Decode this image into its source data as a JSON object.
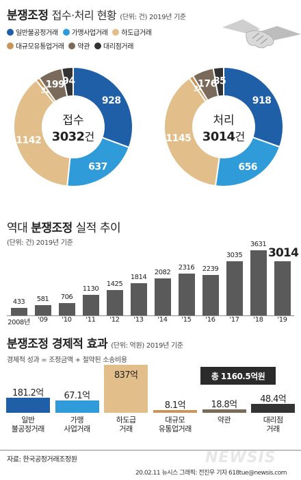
{
  "header": {
    "title_main": "분쟁조정",
    "title_sub": "접수·처리 현황",
    "unit_note": "(단위: 건) 2019년 기준"
  },
  "legend": [
    {
      "label": "일반불공정거래",
      "color": "#1f5fa8"
    },
    {
      "label": "가맹사업거래",
      "color": "#2f9bd8"
    },
    {
      "label": "하도급거래",
      "color": "#e2bf8a"
    },
    {
      "label": "대규모유통업거래",
      "color": "#c8955a"
    },
    {
      "label": "약관",
      "color": "#7a6a5a"
    },
    {
      "label": "대리점거래",
      "color": "#333333"
    }
  ],
  "colors": {
    "unfair": "#1f5fa8",
    "franchise": "#2f9bd8",
    "subcontract": "#e2bf8a",
    "largeretail": "#c8955a",
    "terms": "#7a6a5a",
    "agency": "#333333",
    "bar": "#5a5a5a"
  },
  "donuts": {
    "received": {
      "label": "접수",
      "total": "3032",
      "suffix": "건"
    },
    "processed": {
      "label": "처리",
      "total": "3014",
      "suffix": "건"
    }
  },
  "trend": {
    "title_prefix": "역대",
    "title_bold": "분쟁조정",
    "title_suffix": "실적 추이",
    "unit_note": "(단위: 건) 2019년 기준"
  },
  "economic": {
    "title_bold": "분쟁조정 경제적 효과",
    "unit_note": "(단위: 억원) 2019년 기준",
    "formula": "경제적 성과 = 조정금액 + 절약된 소송비용",
    "total": "총 1160.5억원",
    "items": [
      {
        "value": "181.2억",
        "amount": 181.2,
        "label": "일반\n불공정거래",
        "color": "#1f5fa8"
      },
      {
        "value": "67.1억",
        "amount": 67.1,
        "label": "가맹\n사업거래",
        "color": "#2f9bd8"
      },
      {
        "value": "837억",
        "amount": 837,
        "label": "하도급\n거래",
        "color": "#e2bf8a"
      },
      {
        "value": "8.1억",
        "amount": 8.1,
        "label": "대규모\n유통업거래",
        "color": "#c8955a"
      },
      {
        "value": "18.8억",
        "amount": 18.8,
        "label": "약관",
        "color": "#7a6a5a"
      },
      {
        "value": "48.4억",
        "amount": 48.4,
        "label": "대리점\n거래",
        "color": "#333333"
      }
    ]
  },
  "footer": {
    "source": "자료: 한국공정거래조정원",
    "credit": "20.02.11 뉴시스 그래픽: 전진우 기자 618tue@newsis.com",
    "watermark": "NEWSIS"
  },
  "chart_data": [
    {
      "type": "pie",
      "title": "접수",
      "center_total": 3032,
      "categories": [
        "일반불공정거래",
        "가맹사업거래",
        "하도급거래",
        "대규모유통업거래",
        "약관",
        "대리점거래"
      ],
      "values": [
        928,
        637,
        1142,
        32,
        199,
        94
      ]
    },
    {
      "type": "pie",
      "title": "처리",
      "center_total": 3014,
      "categories": [
        "일반불공정거래",
        "가맹사업거래",
        "하도급거래",
        "대규모유통업거래",
        "약관",
        "대리점거래"
      ],
      "values": [
        918,
        656,
        1145,
        34,
        176,
        85
      ]
    },
    {
      "type": "bar",
      "categories": [
        "2008년",
        "'09",
        "'10",
        "'11",
        "'12",
        "'13",
        "'14",
        "'15",
        "'16",
        "'17",
        "'18",
        "'19"
      ],
      "values": [
        433,
        581,
        706,
        1130,
        1425,
        1814,
        2082,
        2316,
        2239,
        3035,
        3631,
        3014
      ],
      "ylim": [
        0,
        3631
      ]
    },
    {
      "type": "bar",
      "categories": [
        "일반불공정거래",
        "가맹사업거래",
        "하도급거래",
        "대규모유통업거래",
        "약관",
        "대리점거래"
      ],
      "values": [
        181.2,
        67.1,
        837,
        8.1,
        18.8,
        48.4
      ]
    }
  ]
}
